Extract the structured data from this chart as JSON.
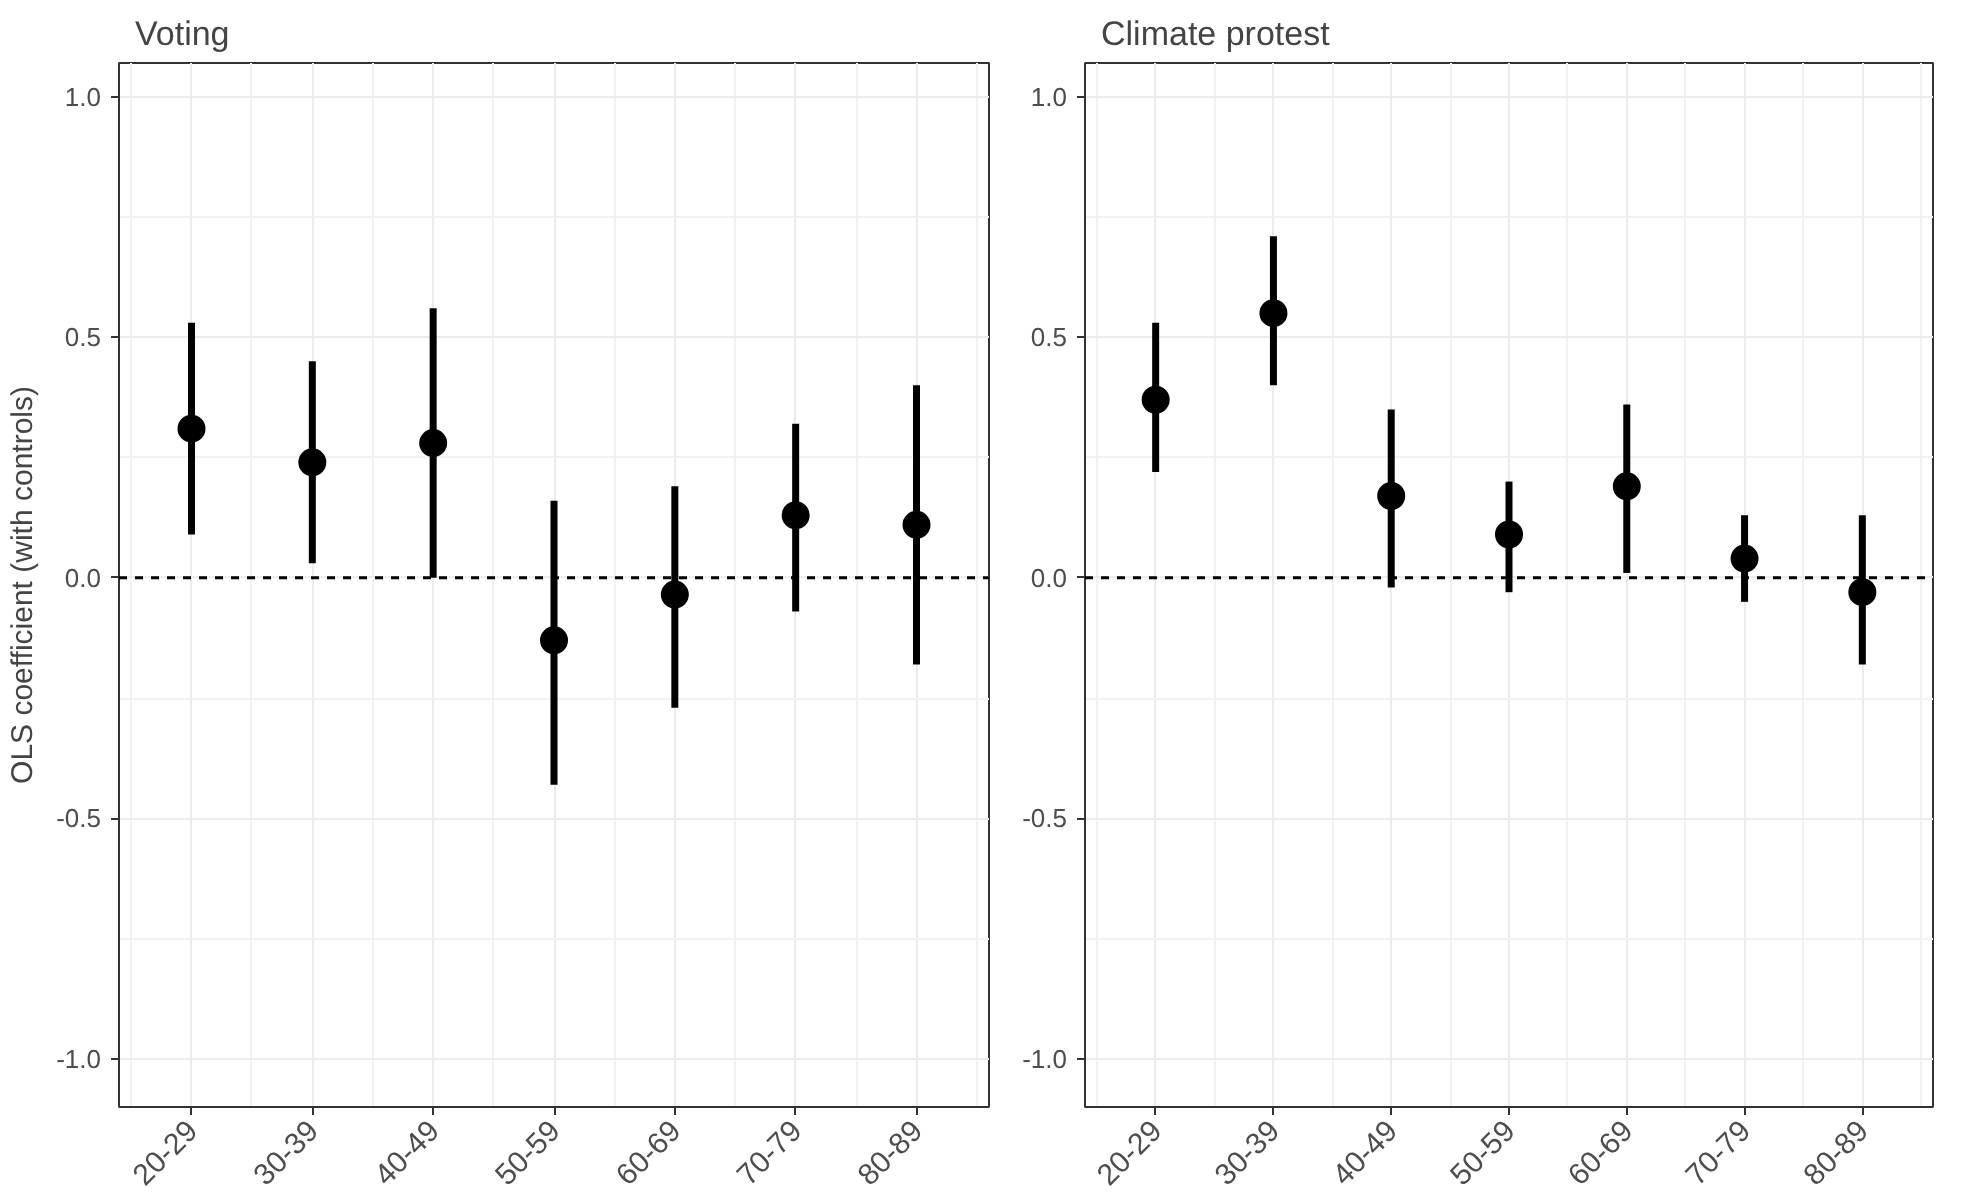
{
  "chart_data": [
    {
      "type": "scatter",
      "title": "Voting",
      "ylabel": "OLS coefficient (with controls)",
      "categories": [
        "20-29",
        "30-39",
        "40-49",
        "50-59",
        "60-69",
        "70-79",
        "80-89"
      ],
      "series": [
        {
          "color": "#000000",
          "values": [
            0.31,
            0.24,
            0.28,
            -0.13,
            -0.035,
            0.13,
            0.11
          ],
          "errors": [
            [
              0.09,
              0.53
            ],
            [
              0.03,
              0.45
            ],
            [
              0.0,
              0.56
            ],
            [
              -0.43,
              0.16
            ],
            [
              -0.27,
              0.19
            ],
            [
              -0.07,
              0.32
            ],
            [
              -0.18,
              0.4
            ]
          ]
        }
      ],
      "ylim": [
        -1.1,
        1.07
      ],
      "yticks": [
        {
          "value": -1.0,
          "label": "-1.0"
        },
        {
          "value": -0.5,
          "label": "-0.5"
        },
        {
          "value": 0,
          "label": "0.0"
        },
        {
          "value": 0.5,
          "label": "0.5"
        },
        {
          "value": 1.0,
          "label": "1.0"
        }
      ],
      "ref_lines": [
        {
          "axis": "y",
          "value": 0,
          "line_style": "dashed",
          "color": "#000000"
        }
      ],
      "grid": true,
      "marker": "circle"
    },
    {
      "type": "scatter",
      "title": "Climate protest",
      "categories": [
        "20-29",
        "30-39",
        "40-49",
        "50-59",
        "60-69",
        "70-79",
        "80-89"
      ],
      "series": [
        {
          "color": "#000000",
          "values": [
            0.37,
            0.55,
            0.17,
            0.09,
            0.19,
            0.04,
            -0.03
          ],
          "errors": [
            [
              0.22,
              0.53
            ],
            [
              0.4,
              0.71
            ],
            [
              -0.02,
              0.35
            ],
            [
              -0.03,
              0.2
            ],
            [
              0.01,
              0.36
            ],
            [
              -0.05,
              0.13
            ],
            [
              -0.18,
              0.13
            ]
          ]
        }
      ],
      "ylim": [
        -1.1,
        1.07
      ],
      "yticks": [
        {
          "value": -1.0,
          "label": "-1.0"
        },
        {
          "value": -0.5,
          "label": "-0.5"
        },
        {
          "value": 0,
          "label": "0.0"
        },
        {
          "value": 0.5,
          "label": "0.5"
        },
        {
          "value": 1.0,
          "label": "1.0"
        }
      ],
      "ref_lines": [
        {
          "axis": "y",
          "value": 0,
          "line_style": "dashed",
          "color": "#000000"
        }
      ],
      "grid": true,
      "marker": "circle"
    }
  ]
}
